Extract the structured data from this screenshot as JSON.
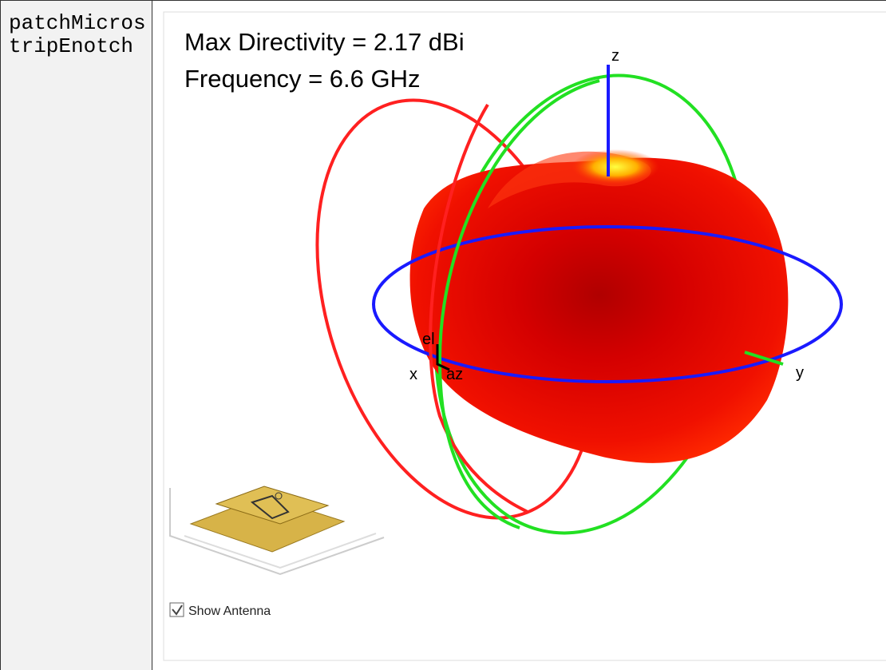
{
  "table": {
    "name": "patchMicrostripEnotch"
  },
  "pattern": {
    "title_lines": [
      "Max Directivity = 2.17 dBi",
      "Frequency = 6.6 GHz"
    ],
    "axes": {
      "x": "x",
      "y": "y",
      "z": "z",
      "el": "el",
      "az": "az"
    },
    "checkbox": {
      "label": "Show Antenna",
      "checked": true
    }
  }
}
